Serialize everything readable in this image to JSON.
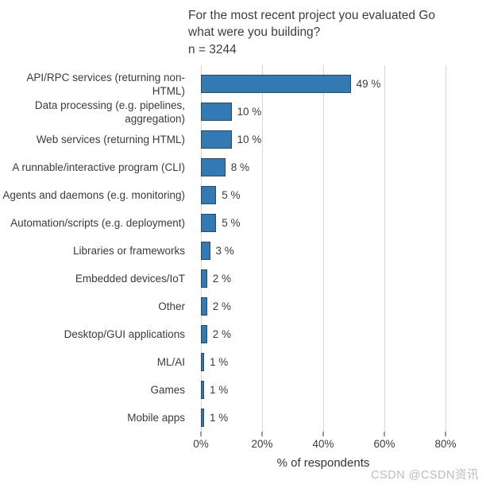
{
  "chart_data": {
    "type": "bar",
    "orientation": "horizontal",
    "title_line1": "For the most recent project you evaluated Go",
    "title_line2": "what were you building?",
    "n_label": "n = 3244",
    "categories": [
      "API/RPC services (returning non-HTML)",
      "Data processing (e.g. pipelines, aggregation)",
      "Web services (returning HTML)",
      "A runnable/interactive program (CLI)",
      "Agents and daemons (e.g. monitoring)",
      "Automation/scripts (e.g. deployment)",
      "Libraries or frameworks",
      "Embedded devices/IoT",
      "Other",
      "Desktop/GUI applications",
      "ML/AI",
      "Games",
      "Mobile apps"
    ],
    "values": [
      49,
      10,
      10,
      8,
      5,
      5,
      3,
      2,
      2,
      2,
      1,
      1,
      1
    ],
    "value_labels": [
      "49 %",
      "10 %",
      "10 %",
      "8 %",
      "5 %",
      "5 %",
      "3 %",
      "2 %",
      "2 %",
      "2 %",
      "1 %",
      "1 %",
      "1 %"
    ],
    "xlabel": "% of respondents",
    "x_ticks": [
      0,
      20,
      40,
      60,
      80
    ],
    "x_tick_labels": [
      "0%",
      "20%",
      "40%",
      "60%",
      "80%"
    ],
    "xlim": [
      0,
      90
    ],
    "grid": true,
    "legend": false,
    "bar_fill": "#3379b4",
    "bar_border": "#2d4a61",
    "gridline_color": "#d8d8d8",
    "text_color": "#3d3d3d"
  },
  "watermark": {
    "text": "CSDN @CSDN资讯",
    "color": "#bcbcbc"
  }
}
